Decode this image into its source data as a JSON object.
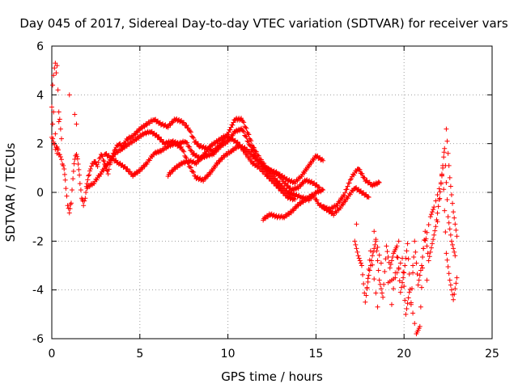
{
  "chart_data": {
    "type": "scatter",
    "title": "Day 045 of 2017, Sidereal Day-to-day VTEC variation (SDTVAR) for receiver vars",
    "xlabel": "GPS time / hours",
    "ylabel": "SDTVAR / TECUs",
    "xlim": [
      0,
      25
    ],
    "ylim": [
      -6,
      6
    ],
    "xticks": [
      "0",
      "5",
      "10",
      "15",
      "20",
      "25"
    ],
    "yticks": [
      "-6",
      "-4",
      "-2",
      "0",
      "2",
      "4",
      "6"
    ],
    "grid": true,
    "marker": "plus",
    "series": [
      {
        "name": "SDTVAR",
        "color": "#ff0000",
        "trace_a": [
          [
            0.0,
            2.3
          ],
          [
            0.1,
            2.1
          ],
          [
            0.2,
            1.8
          ],
          [
            0.3,
            1.9
          ],
          [
            0.4,
            1.6
          ],
          [
            0.5,
            1.5
          ],
          [
            0.6,
            1.2
          ],
          [
            0.7,
            1.0
          ],
          [
            0.8,
            0.2
          ],
          [
            0.9,
            -0.5
          ],
          [
            1.0,
            -0.8
          ],
          [
            1.1,
            -0.4
          ],
          [
            1.2,
            0.6
          ],
          [
            1.3,
            1.4
          ],
          [
            1.4,
            1.6
          ],
          [
            1.5,
            1.2
          ],
          [
            1.6,
            0.4
          ],
          [
            1.7,
            -0.2
          ],
          [
            1.8,
            -0.5
          ],
          [
            1.9,
            -0.2
          ],
          [
            2.0,
            0.4
          ],
          [
            2.2,
            1.0
          ],
          [
            2.4,
            1.3
          ],
          [
            2.6,
            1.1
          ],
          [
            2.8,
            1.6
          ],
          [
            3.0,
            1.2
          ],
          [
            3.2,
            0.8
          ],
          [
            3.4,
            1.4
          ],
          [
            3.6,
            1.8
          ],
          [
            3.8,
            2.0
          ],
          [
            4.0,
            1.9
          ],
          [
            4.3,
            2.2
          ],
          [
            4.6,
            2.3
          ],
          [
            5.0,
            2.6
          ],
          [
            5.4,
            2.8
          ],
          [
            5.8,
            3.0
          ],
          [
            6.2,
            2.8
          ],
          [
            6.6,
            2.7
          ],
          [
            7.0,
            3.0
          ],
          [
            7.4,
            2.9
          ],
          [
            7.8,
            2.6
          ],
          [
            8.1,
            2.1
          ],
          [
            8.4,
            1.9
          ],
          [
            8.8,
            1.8
          ],
          [
            9.2,
            1.7
          ],
          [
            9.6,
            2.0
          ],
          [
            10.0,
            2.4
          ],
          [
            10.4,
            3.0
          ],
          [
            10.8,
            3.0
          ],
          [
            11.1,
            2.5
          ],
          [
            11.4,
            1.9
          ],
          [
            11.8,
            1.4
          ],
          [
            12.2,
            1.0
          ],
          [
            12.6,
            0.8
          ],
          [
            13.0,
            0.7
          ],
          [
            13.4,
            0.5
          ],
          [
            13.8,
            0.4
          ],
          [
            14.2,
            0.7
          ],
          [
            14.6,
            1.1
          ],
          [
            15.0,
            1.5
          ],
          [
            15.4,
            1.3
          ]
        ],
        "trace_b": [
          [
            2.0,
            0.2
          ],
          [
            2.4,
            0.4
          ],
          [
            2.8,
            0.8
          ],
          [
            3.2,
            1.2
          ],
          [
            3.6,
            1.6
          ],
          [
            4.0,
            1.8
          ],
          [
            4.4,
            2.0
          ],
          [
            4.8,
            2.2
          ],
          [
            5.2,
            2.4
          ],
          [
            5.6,
            2.5
          ],
          [
            6.0,
            2.3
          ],
          [
            6.4,
            2.0
          ],
          [
            6.8,
            2.1
          ],
          [
            7.2,
            2.0
          ],
          [
            7.6,
            2.1
          ],
          [
            8.0,
            1.6
          ],
          [
            8.4,
            1.4
          ],
          [
            8.8,
            1.5
          ],
          [
            9.2,
            1.6
          ],
          [
            9.6,
            1.9
          ],
          [
            10.0,
            2.1
          ],
          [
            10.4,
            2.5
          ],
          [
            10.8,
            2.6
          ],
          [
            11.2,
            2.0
          ],
          [
            11.6,
            1.4
          ],
          [
            12.0,
            1.1
          ],
          [
            12.4,
            0.9
          ],
          [
            12.8,
            0.8
          ],
          [
            13.2,
            0.4
          ],
          [
            13.6,
            0.1
          ],
          [
            14.0,
            0.2
          ],
          [
            14.4,
            0.5
          ],
          [
            14.8,
            0.4
          ],
          [
            15.2,
            0.2
          ]
        ],
        "trace_c": [
          [
            3.0,
            1.6
          ],
          [
            3.4,
            1.4
          ],
          [
            3.8,
            1.2
          ],
          [
            4.2,
            1.0
          ],
          [
            4.6,
            0.7
          ],
          [
            5.0,
            0.9
          ],
          [
            5.4,
            1.2
          ],
          [
            5.8,
            1.6
          ],
          [
            6.2,
            1.7
          ],
          [
            6.6,
            1.9
          ],
          [
            7.0,
            2.0
          ],
          [
            7.4,
            1.8
          ],
          [
            7.8,
            1.1
          ],
          [
            8.2,
            0.6
          ],
          [
            8.6,
            0.5
          ],
          [
            9.0,
            0.8
          ],
          [
            9.4,
            1.2
          ],
          [
            9.8,
            1.5
          ],
          [
            10.2,
            1.7
          ],
          [
            10.6,
            1.9
          ],
          [
            11.0,
            1.8
          ],
          [
            11.4,
            1.5
          ],
          [
            11.8,
            1.2
          ],
          [
            12.2,
            0.9
          ],
          [
            12.6,
            0.6
          ],
          [
            13.0,
            0.3
          ],
          [
            13.4,
            0.0
          ],
          [
            13.8,
            -0.1
          ],
          [
            14.2,
            -0.2
          ],
          [
            14.6,
            -0.3
          ],
          [
            15.0,
            0.0
          ],
          [
            15.4,
            0.1
          ]
        ],
        "trace_d": [
          [
            6.6,
            0.7
          ],
          [
            7.0,
            1.0
          ],
          [
            7.4,
            1.2
          ],
          [
            7.8,
            1.3
          ],
          [
            8.2,
            1.2
          ],
          [
            8.6,
            1.5
          ],
          [
            9.0,
            1.9
          ],
          [
            9.4,
            2.1
          ],
          [
            9.8,
            2.3
          ],
          [
            10.2,
            2.2
          ],
          [
            10.6,
            2.0
          ],
          [
            11.0,
            1.6
          ],
          [
            11.4,
            1.2
          ],
          [
            11.8,
            1.0
          ],
          [
            12.2,
            0.7
          ],
          [
            12.6,
            0.4
          ],
          [
            13.0,
            0.1
          ],
          [
            13.4,
            -0.2
          ],
          [
            13.8,
            -0.3
          ]
        ],
        "trace_e": [
          [
            12.0,
            -1.1
          ],
          [
            12.4,
            -0.9
          ],
          [
            12.8,
            -1.0
          ],
          [
            13.2,
            -1.0
          ],
          [
            13.6,
            -0.8
          ],
          [
            14.0,
            -0.5
          ],
          [
            14.4,
            -0.3
          ],
          [
            14.8,
            -0.1
          ],
          [
            15.2,
            -0.5
          ],
          [
            15.6,
            -0.7
          ],
          [
            16.0,
            -0.9
          ],
          [
            16.4,
            -0.6
          ],
          [
            16.8,
            -0.2
          ],
          [
            17.2,
            0.2
          ],
          [
            17.6,
            0.0
          ],
          [
            18.0,
            -0.2
          ]
        ],
        "trace_f": [
          [
            15.4,
            -0.6
          ],
          [
            15.8,
            -0.7
          ],
          [
            16.2,
            -0.5
          ],
          [
            16.6,
            -0.1
          ],
          [
            17.0,
            0.6
          ],
          [
            17.4,
            1.0
          ],
          [
            17.8,
            0.5
          ],
          [
            18.2,
            0.3
          ],
          [
            18.6,
            0.4
          ]
        ],
        "scatter_noise": [
          [
            17.2,
            -2.0
          ],
          [
            17.4,
            -2.6
          ],
          [
            17.6,
            -3.0
          ],
          [
            17.8,
            -4.5
          ],
          [
            18.0,
            -3.4
          ],
          [
            18.2,
            -2.6
          ],
          [
            18.4,
            -2.0
          ],
          [
            18.6,
            -3.6
          ],
          [
            18.8,
            -4.3
          ],
          [
            19.0,
            -2.2
          ],
          [
            19.2,
            -3.1
          ],
          [
            19.4,
            -2.5
          ],
          [
            19.6,
            -2.2
          ],
          [
            19.8,
            -4.1
          ],
          [
            20.0,
            -3.3
          ],
          [
            20.2,
            -2.1
          ],
          [
            20.4,
            -4.6
          ],
          [
            20.6,
            -2.0
          ],
          [
            20.8,
            -3.8
          ],
          [
            21.0,
            -3.0
          ],
          [
            21.2,
            -1.6
          ],
          [
            21.4,
            -2.8
          ],
          [
            21.6,
            -2.1
          ],
          [
            21.8,
            -1.4
          ],
          [
            22.0,
            -0.3
          ],
          [
            22.2,
            1.0
          ],
          [
            22.4,
            -2.5
          ],
          [
            22.6,
            -3.6
          ],
          [
            22.8,
            -4.4
          ],
          [
            23.0,
            -3.5
          ],
          [
            17.9,
            -3.9
          ],
          [
            18.1,
            -2.4
          ],
          [
            18.5,
            -4.7
          ],
          [
            19.1,
            -3.7
          ],
          [
            19.5,
            -3.5
          ],
          [
            19.9,
            -2.7
          ],
          [
            20.1,
            -5.0
          ],
          [
            20.3,
            -4.1
          ],
          [
            20.7,
            -5.8
          ],
          [
            20.9,
            -5.5
          ],
          [
            21.1,
            -2.3
          ],
          [
            21.5,
            -1.0
          ],
          [
            21.7,
            -0.6
          ],
          [
            22.1,
            0.4
          ],
          [
            22.3,
            1.8
          ],
          [
            22.5,
            -1.0
          ],
          [
            22.7,
            -2.0
          ],
          [
            22.9,
            -2.6
          ],
          [
            18.3,
            -1.6
          ],
          [
            18.7,
            -2.9
          ],
          [
            19.3,
            -4.6
          ],
          [
            19.7,
            -2.0
          ],
          [
            20.5,
            -3.0
          ],
          [
            21.3,
            -3.6
          ],
          [
            21.9,
            -1.2
          ],
          [
            22.4,
            2.6
          ],
          [
            22.6,
            0.6
          ],
          [
            22.8,
            -0.8
          ],
          [
            23.0,
            -1.8
          ],
          [
            17.3,
            -1.3
          ]
        ],
        "early_spike": [
          [
            0.0,
            3.5
          ],
          [
            0.05,
            4.4
          ],
          [
            0.1,
            4.8
          ],
          [
            0.15,
            5.1
          ],
          [
            0.2,
            5.3
          ],
          [
            0.25,
            4.9
          ],
          [
            0.3,
            5.2
          ],
          [
            0.35,
            4.2
          ],
          [
            0.4,
            3.3
          ],
          [
            0.45,
            3.0
          ],
          [
            0.5,
            2.6
          ],
          [
            0.55,
            2.2
          ],
          [
            1.0,
            4.0
          ],
          [
            1.3,
            3.2
          ],
          [
            1.4,
            2.8
          ],
          [
            0.05,
            2.8
          ],
          [
            0.1,
            3.3
          ],
          [
            0.2,
            2.4
          ],
          [
            0.3,
            1.6
          ],
          [
            0.4,
            2.9
          ]
        ]
      }
    ]
  }
}
